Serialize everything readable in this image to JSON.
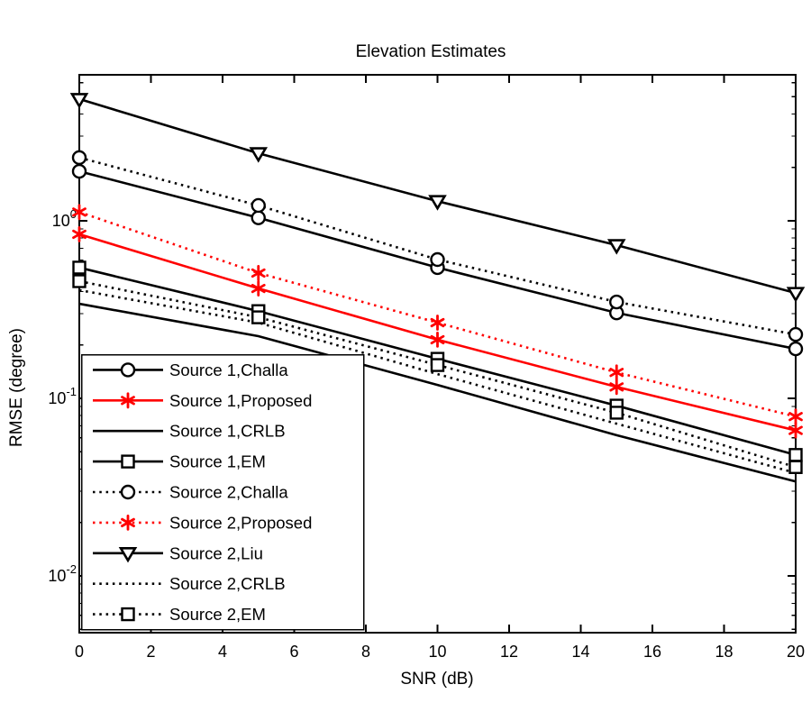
{
  "chart_data": {
    "type": "line",
    "title": "Elevation Estimates",
    "xlabel": "SNR (dB)",
    "ylabel": "RMSE (degree)",
    "x": [
      0,
      5,
      10,
      15,
      20
    ],
    "xlim": [
      0,
      20
    ],
    "xticks": [
      0,
      2,
      4,
      6,
      8,
      10,
      12,
      14,
      16,
      18,
      20
    ],
    "yscale": "log",
    "ylim": [
      0.0048,
      6.64
    ],
    "ytick_exponents": [
      0,
      -1,
      -2
    ],
    "grid": false,
    "legend_position": "lower-left-inside",
    "colors": {
      "black": "#000000",
      "red": "#ff0000"
    },
    "series": [
      {
        "name": "Source 1,Challa",
        "color": "#000000",
        "linestyle": "solid",
        "marker": "circle",
        "values": [
          1.9,
          1.04,
          0.545,
          0.303,
          0.19
        ]
      },
      {
        "name": "Source 1,Proposed",
        "color": "#ff0000",
        "linestyle": "solid",
        "marker": "star",
        "values": [
          0.84,
          0.416,
          0.214,
          0.116,
          0.066
        ]
      },
      {
        "name": "Source 1,CRLB",
        "color": "#000000",
        "linestyle": "solid",
        "marker": "none",
        "values": [
          0.341,
          0.224,
          0.119,
          0.062,
          0.034
        ]
      },
      {
        "name": "Source 1,EM",
        "color": "#000000",
        "linestyle": "solid",
        "marker": "square",
        "values": [
          0.545,
          0.31,
          0.167,
          0.091,
          0.048
        ]
      },
      {
        "name": "Source 2,Challa",
        "color": "#000000",
        "linestyle": "dotted",
        "marker": "circle",
        "values": [
          2.27,
          1.22,
          0.605,
          0.349,
          0.229
        ]
      },
      {
        "name": "Source 2,Proposed",
        "color": "#ff0000",
        "linestyle": "dotted",
        "marker": "star",
        "values": [
          1.12,
          0.508,
          0.267,
          0.14,
          0.079
        ]
      },
      {
        "name": "Source 2,Liu",
        "color": "#000000",
        "linestyle": "solid",
        "marker": "triangle-down",
        "values": [
          4.85,
          2.4,
          1.29,
          0.729,
          0.392
        ]
      },
      {
        "name": "Source 2,CRLB",
        "color": "#000000",
        "linestyle": "dotted",
        "marker": "none",
        "values": [
          0.407,
          0.267,
          0.137,
          0.072,
          0.038
        ]
      },
      {
        "name": "Source 2,EM",
        "color": "#000000",
        "linestyle": "dotted",
        "marker": "square",
        "values": [
          0.457,
          0.286,
          0.154,
          0.083,
          0.041
        ]
      }
    ]
  }
}
